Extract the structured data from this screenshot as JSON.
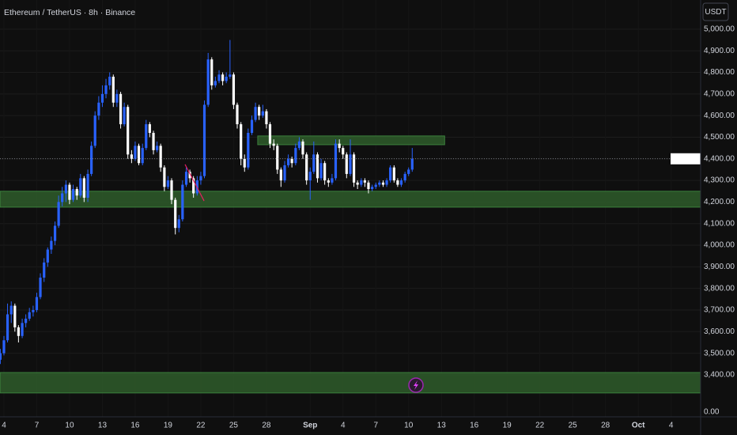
{
  "chart_data": {
    "type": "candlestick",
    "title": "Ethereum / TetherUS · 8h · Binance",
    "currency_button": "USDT",
    "up_color": "#2962ff",
    "down_color": "#ffffff",
    "grid": true,
    "xlim": [
      3.64,
      67.7
    ],
    "ylim": [
      3268,
      5135
    ],
    "xticks": [
      {
        "value": 4,
        "label": "4"
      },
      {
        "value": 7,
        "label": "7"
      },
      {
        "value": 10,
        "label": "10"
      },
      {
        "value": 13,
        "label": "13"
      },
      {
        "value": 16,
        "label": "16"
      },
      {
        "value": 19,
        "label": "19"
      },
      {
        "value": 22,
        "label": "22"
      },
      {
        "value": 25,
        "label": "25"
      },
      {
        "value": 28,
        "label": "28"
      },
      {
        "value": 32,
        "label": "Sep"
      },
      {
        "value": 35,
        "label": "4"
      },
      {
        "value": 38,
        "label": "7"
      },
      {
        "value": 41,
        "label": "10"
      },
      {
        "value": 44,
        "label": "13"
      },
      {
        "value": 47,
        "label": "16"
      },
      {
        "value": 50,
        "label": "19"
      },
      {
        "value": 53,
        "label": "22"
      },
      {
        "value": 56,
        "label": "25"
      },
      {
        "value": 59,
        "label": "28"
      },
      {
        "value": 62,
        "label": "Oct"
      },
      {
        "value": 65,
        "label": "4"
      }
    ],
    "yticks": [
      {
        "value": 5000,
        "label": "5,000.00"
      },
      {
        "value": 4900,
        "label": "4,900.00"
      },
      {
        "value": 4800,
        "label": "4,800.00"
      },
      {
        "value": 4700,
        "label": "4,700.00"
      },
      {
        "value": 4600,
        "label": "4,600.00"
      },
      {
        "value": 4500,
        "label": "4,500.00"
      },
      {
        "value": 4400,
        "label": "4,400.00"
      },
      {
        "value": 4300,
        "label": "4,300.00"
      },
      {
        "value": 4200,
        "label": "4,200.00"
      },
      {
        "value": 4100,
        "label": "4,100.00"
      },
      {
        "value": 4000,
        "label": "4,000.00"
      },
      {
        "value": 3900,
        "label": "3,900.00"
      },
      {
        "value": 3800,
        "label": "3,800.00"
      },
      {
        "value": 3700,
        "label": "3,700.00"
      },
      {
        "value": 3600,
        "label": "3,600.00"
      },
      {
        "value": 3500,
        "label": "3,500.00"
      },
      {
        "value": 3400,
        "label": "3,400.00"
      }
    ],
    "pane_tick": {
      "value": 0,
      "label": "0.00"
    },
    "zones": [
      {
        "top": 4250,
        "bottom": 4176,
        "color": "#2e5c2a"
      },
      {
        "top": 3411,
        "bottom": 3316,
        "color": "#2e5c2a"
      },
      {
        "top": 4506,
        "bottom": 4465,
        "x": [
          27.2,
          44.3
        ],
        "color": "#2e5c2a"
      }
    ],
    "trendline": {
      "x": [
        20.56,
        22.3
      ],
      "y": [
        4374,
        4205
      ],
      "color": "#e91e63"
    },
    "x": [
      3.67,
      4,
      4.33,
      4.67,
      5,
      5.33,
      5.67,
      6,
      6.33,
      6.67,
      7,
      7.33,
      7.67,
      8,
      8.33,
      8.67,
      9,
      9.33,
      9.67,
      10,
      10.33,
      10.67,
      11,
      11.33,
      11.67,
      12,
      12.33,
      12.67,
      13,
      13.33,
      13.67,
      14,
      14.33,
      14.67,
      15,
      15.33,
      15.67,
      16,
      16.33,
      16.67,
      17,
      17.33,
      17.67,
      18,
      18.33,
      18.67,
      19,
      19.33,
      19.67,
      20,
      20.33,
      20.67,
      21,
      21.33,
      21.67,
      22,
      22.33,
      22.67,
      23,
      23.33,
      23.67,
      24,
      24.33,
      24.67,
      25,
      25.33,
      25.67,
      26,
      26.33,
      26.67,
      27,
      27.33,
      27.67,
      28,
      28.33,
      28.67,
      29,
      29.33,
      29.67,
      30,
      30.33,
      30.67,
      31,
      31.33,
      31.67,
      32,
      32.33,
      32.67,
      33,
      33.33,
      33.67,
      34,
      34.33,
      34.67,
      35,
      35.33,
      35.67,
      36,
      36.33,
      36.67,
      37,
      37.33,
      37.67,
      38,
      38.33,
      38.67,
      39,
      39.33,
      39.67,
      40,
      40.33,
      40.67,
      41,
      41.33
    ],
    "open": [
      3470,
      3500,
      3560,
      3680,
      3720,
      3620,
      3580,
      3640,
      3660,
      3690,
      3700,
      3760,
      3850,
      3920,
      3980,
      4020,
      4090,
      4200,
      4240,
      4280,
      4210,
      4260,
      4230,
      4310,
      4220,
      4330,
      4460,
      4600,
      4660,
      4700,
      4740,
      4780,
      4660,
      4700,
      4560,
      4640,
      4420,
      4400,
      4460,
      4380,
      4450,
      4560,
      4520,
      4440,
      4460,
      4360,
      4270,
      4300,
      4210,
      4080,
      4120,
      4280,
      4340,
      4310,
      4240,
      4300,
      4320,
      4650,
      4860,
      4740,
      4760,
      4790,
      4760,
      4780,
      4790,
      4650,
      4560,
      4400,
      4360,
      4520,
      4580,
      4640,
      4600,
      4620,
      4560,
      4470,
      4460,
      4350,
      4300,
      4370,
      4400,
      4380,
      4450,
      4480,
      4420,
      4300,
      4340,
      4420,
      4310,
      4380,
      4300,
      4290,
      4310,
      4470,
      4450,
      4420,
      4330,
      4420,
      4290,
      4280,
      4300,
      4290,
      4260,
      4270,
      4280,
      4290,
      4280,
      4300,
      4360,
      4300,
      4280,
      4300,
      4330,
      4350
    ],
    "high": [
      3520,
      3580,
      3730,
      3740,
      3730,
      3630,
      3660,
      3680,
      3710,
      3720,
      3780,
      3870,
      3940,
      3990,
      4040,
      4110,
      4230,
      4270,
      4300,
      4290,
      4280,
      4270,
      4330,
      4320,
      4350,
      4480,
      4620,
      4690,
      4740,
      4770,
      4800,
      4790,
      4720,
      4710,
      4660,
      4650,
      4440,
      4480,
      4470,
      4470,
      4580,
      4570,
      4530,
      4480,
      4470,
      4370,
      4320,
      4310,
      4220,
      4140,
      4300,
      4360,
      4350,
      4320,
      4320,
      4340,
      4670,
      4890,
      4870,
      4780,
      4810,
      4800,
      4800,
      4950,
      4800,
      4660,
      4570,
      4420,
      4540,
      4600,
      4660,
      4650,
      4650,
      4630,
      4570,
      4490,
      4470,
      4360,
      4390,
      4420,
      4410,
      4470,
      4500,
      4490,
      4430,
      4360,
      4480,
      4430,
      4400,
      4390,
      4310,
      4330,
      4490,
      4490,
      4460,
      4430,
      4490,
      4430,
      4300,
      4310,
      4310,
      4300,
      4280,
      4290,
      4300,
      4300,
      4310,
      4370,
      4370,
      4310,
      4310,
      4340,
      4360,
      4450
    ],
    "low": [
      3450,
      3490,
      3550,
      3640,
      3600,
      3550,
      3570,
      3620,
      3650,
      3670,
      3690,
      3750,
      3830,
      3900,
      3960,
      4000,
      4080,
      4180,
      4200,
      4190,
      4200,
      4210,
      4220,
      4200,
      4200,
      4320,
      4450,
      4580,
      4640,
      4680,
      4720,
      4640,
      4640,
      4540,
      4550,
      4400,
      4380,
      4390,
      4370,
      4370,
      4440,
      4500,
      4420,
      4430,
      4340,
      4250,
      4260,
      4190,
      4050,
      4060,
      4110,
      4270,
      4290,
      4220,
      4230,
      4280,
      4310,
      4640,
      4720,
      4730,
      4750,
      4740,
      4750,
      4770,
      4630,
      4540,
      4370,
      4340,
      4350,
      4510,
      4570,
      4580,
      4590,
      4540,
      4450,
      4440,
      4330,
      4270,
      4290,
      4360,
      4360,
      4370,
      4440,
      4400,
      4280,
      4210,
      4330,
      4290,
      4300,
      4280,
      4270,
      4280,
      4300,
      4430,
      4400,
      4310,
      4320,
      4270,
      4260,
      4270,
      4270,
      4240,
      4250,
      4260,
      4270,
      4270,
      4270,
      4290,
      4290,
      4270,
      4270,
      4290,
      4320,
      4340
    ],
    "close": [
      3500,
      3560,
      3680,
      3720,
      3620,
      3580,
      3640,
      3660,
      3690,
      3700,
      3760,
      3850,
      3920,
      3980,
      4020,
      4090,
      4200,
      4240,
      4280,
      4210,
      4260,
      4230,
      4310,
      4220,
      4330,
      4460,
      4600,
      4660,
      4700,
      4740,
      4780,
      4660,
      4700,
      4560,
      4640,
      4420,
      4400,
      4460,
      4380,
      4450,
      4560,
      4520,
      4440,
      4460,
      4360,
      4270,
      4300,
      4210,
      4080,
      4120,
      4280,
      4340,
      4310,
      4240,
      4300,
      4320,
      4650,
      4860,
      4740,
      4760,
      4790,
      4760,
      4780,
      4790,
      4650,
      4560,
      4400,
      4360,
      4520,
      4580,
      4640,
      4600,
      4620,
      4560,
      4470,
      4460,
      4350,
      4300,
      4370,
      4400,
      4380,
      4450,
      4480,
      4420,
      4300,
      4340,
      4420,
      4310,
      4380,
      4300,
      4290,
      4310,
      4470,
      4450,
      4420,
      4330,
      4420,
      4290,
      4280,
      4300,
      4290,
      4260,
      4270,
      4280,
      4290,
      4280,
      4300,
      4360,
      4300,
      4280,
      4300,
      4330,
      4350,
      4400
    ]
  }
}
